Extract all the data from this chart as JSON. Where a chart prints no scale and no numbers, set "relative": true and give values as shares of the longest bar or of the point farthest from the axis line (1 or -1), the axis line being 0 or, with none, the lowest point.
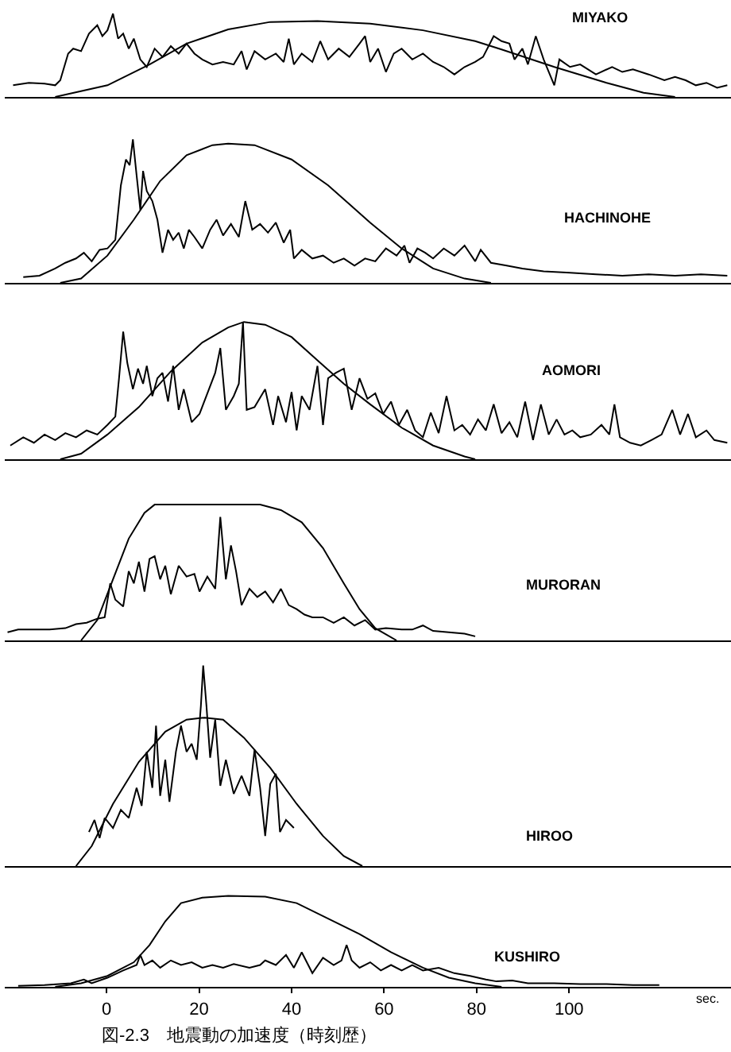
{
  "chart_data": [
    {
      "type": "line",
      "title": "MIYAKO",
      "relative": true,
      "xlim": [
        -22,
        135
      ],
      "tick_labels": false,
      "series": [
        {
          "color": "#000000",
          "x": [
            -11.1,
            0.2,
            9.3,
            17.3,
            26.3,
            35.4,
            45.6,
            57.0,
            68.4,
            79.7,
            85.4,
            96.8,
            108.1,
            116.1,
            122.9
          ],
          "values": [
            0,
            0.14,
            0.39,
            0.64,
            0.81,
            0.9,
            0.91,
            0.88,
            0.8,
            0.67,
            0.57,
            0.36,
            0.17,
            0.05,
            0
          ]
        },
        {
          "color": "#000000",
          "x": [
            -20.2,
            -16.8,
            -13.4,
            -11.1,
            -10.0,
            -8.3,
            -7.2,
            -5.5,
            -3.8,
            -2.0,
            -0.9,
            0.2,
            1.4,
            2.5,
            3.6,
            4.8,
            5.9,
            7.3,
            8.7,
            10.4,
            12.1,
            13.9,
            15.6,
            17.3,
            19.0,
            20.7,
            22.9,
            25.2,
            27.5,
            29.2,
            30.3,
            32.0,
            34.3,
            36.6,
            38.3,
            39.4,
            40.5,
            42.2,
            44.5,
            46.2,
            47.9,
            50.2,
            52.5,
            54.7,
            55.9,
            57.0,
            58.7,
            60.4,
            62.1,
            63.8,
            66.1,
            68.4,
            70.6,
            72.9,
            75.2,
            77.4,
            79.7,
            81.4,
            83.7,
            85.4,
            87.1,
            88.2,
            89.9,
            91.1,
            92.8,
            94.5,
            96.8,
            97.9,
            100.2,
            102.4,
            105.8,
            109.3,
            111.5,
            113.8,
            117.2,
            120.6,
            122.9,
            125.2,
            127.4,
            129.7,
            132.0,
            134.2
          ],
          "values": [
            0.14,
            0.17,
            0.16,
            0.14,
            0.2,
            0.52,
            0.58,
            0.55,
            0.76,
            0.86,
            0.73,
            0.8,
            1.0,
            0.7,
            0.76,
            0.58,
            0.7,
            0.45,
            0.36,
            0.58,
            0.48,
            0.61,
            0.52,
            0.64,
            0.52,
            0.45,
            0.39,
            0.42,
            0.39,
            0.55,
            0.33,
            0.55,
            0.45,
            0.52,
            0.42,
            0.7,
            0.39,
            0.52,
            0.42,
            0.67,
            0.45,
            0.58,
            0.48,
            0.64,
            0.73,
            0.42,
            0.58,
            0.3,
            0.52,
            0.58,
            0.45,
            0.52,
            0.42,
            0.36,
            0.27,
            0.36,
            0.42,
            0.48,
            0.73,
            0.67,
            0.64,
            0.45,
            0.58,
            0.39,
            0.73,
            0.45,
            0.14,
            0.45,
            0.36,
            0.39,
            0.27,
            0.36,
            0.3,
            0.33,
            0.27,
            0.2,
            0.24,
            0.2,
            0.14,
            0.17,
            0.11,
            0.14
          ]
        }
      ]
    },
    {
      "type": "line",
      "title": "HACHINOHE",
      "relative": true,
      "xlim": [
        -22,
        135
      ],
      "tick_labels": false,
      "series": [
        {
          "color": "#000000",
          "x": [
            -10.0,
            -5.5,
            0.2,
            5.9,
            11.6,
            17.3,
            22.9,
            26.3,
            32.0,
            40.0,
            47.9,
            57.0,
            63.8,
            70.6,
            77.4,
            83.1
          ],
          "values": [
            0,
            0.03,
            0.19,
            0.44,
            0.71,
            0.89,
            0.96,
            0.97,
            0.96,
            0.86,
            0.68,
            0.42,
            0.24,
            0.1,
            0.03,
            0
          ]
        },
        {
          "color": "#000000",
          "x": [
            -18.0,
            -14.5,
            -11.1,
            -8.9,
            -6.6,
            -4.9,
            -3.2,
            -1.5,
            0.2,
            1.9,
            3.1,
            4.2,
            5.0,
            5.7,
            6.5,
            7.3,
            7.9,
            8.7,
            9.9,
            11.0,
            12.1,
            13.3,
            14.4,
            15.6,
            16.7,
            17.8,
            19.0,
            20.7,
            22.4,
            23.8,
            25.2,
            26.9,
            28.6,
            30.0,
            31.5,
            33.2,
            34.9,
            36.6,
            38.3,
            39.7,
            40.5,
            42.2,
            44.5,
            46.8,
            49.1,
            51.3,
            53.6,
            55.9,
            58.1,
            60.4,
            62.7,
            64.4,
            65.5,
            67.2,
            68.9,
            70.6,
            72.9,
            75.2,
            77.4,
            79.7,
            80.9,
            83.1,
            86.5,
            89.9,
            94.5,
            100.2,
            105.8,
            111.5,
            117.2,
            122.9,
            128.5,
            134.2
          ],
          "values": [
            0.04,
            0.05,
            0.1,
            0.14,
            0.17,
            0.21,
            0.15,
            0.23,
            0.24,
            0.3,
            0.68,
            0.86,
            0.82,
            1.0,
            0.75,
            0.51,
            0.78,
            0.64,
            0.57,
            0.44,
            0.21,
            0.37,
            0.3,
            0.35,
            0.24,
            0.37,
            0.32,
            0.24,
            0.37,
            0.44,
            0.33,
            0.41,
            0.32,
            0.57,
            0.37,
            0.41,
            0.35,
            0.42,
            0.28,
            0.37,
            0.17,
            0.23,
            0.17,
            0.19,
            0.14,
            0.17,
            0.12,
            0.17,
            0.15,
            0.24,
            0.19,
            0.26,
            0.14,
            0.24,
            0.21,
            0.17,
            0.24,
            0.19,
            0.26,
            0.15,
            0.23,
            0.14,
            0.12,
            0.1,
            0.08,
            0.07,
            0.06,
            0.05,
            0.06,
            0.05,
            0.06,
            0.05
          ]
        }
      ]
    },
    {
      "type": "line",
      "title": "AOMORI",
      "relative": true,
      "xlim": [
        -22,
        135
      ],
      "tick_labels": false,
      "series": [
        {
          "color": "#000000",
          "x": [
            -10.0,
            -5.5,
            0.2,
            7.0,
            13.9,
            20.7,
            26.3,
            29.7,
            34.3,
            40.0,
            45.6,
            51.3,
            57.0,
            63.8,
            70.6,
            77.4,
            79.7
          ],
          "values": [
            0,
            0.04,
            0.18,
            0.38,
            0.64,
            0.85,
            0.96,
            1.0,
            0.98,
            0.89,
            0.72,
            0.55,
            0.4,
            0.23,
            0.1,
            0.02,
            0
          ]
        },
        {
          "color": "#000000",
          "x": [
            -20.8,
            -18.0,
            -15.7,
            -13.4,
            -11.1,
            -8.9,
            -6.6,
            -4.3,
            -2.0,
            0.2,
            1.9,
            2.7,
            3.6,
            4.5,
            5.7,
            6.8,
            7.9,
            8.7,
            9.9,
            11.0,
            12.1,
            13.3,
            14.4,
            15.6,
            16.7,
            18.4,
            20.1,
            21.8,
            23.5,
            24.6,
            25.8,
            27.5,
            28.6,
            29.5,
            30.3,
            32.0,
            34.3,
            36.0,
            37.1,
            38.8,
            40.0,
            41.1,
            42.2,
            43.9,
            45.6,
            46.8,
            47.9,
            49.6,
            51.3,
            53.0,
            54.7,
            56.4,
            58.1,
            59.8,
            61.5,
            63.2,
            65.0,
            66.7,
            68.4,
            70.1,
            71.8,
            73.5,
            75.2,
            76.9,
            78.6,
            80.3,
            82.0,
            83.7,
            85.4,
            87.1,
            88.8,
            90.5,
            92.2,
            93.9,
            95.6,
            97.3,
            99.0,
            100.7,
            102.4,
            104.7,
            107.0,
            108.7,
            109.8,
            111.0,
            113.2,
            115.5,
            117.8,
            120.0,
            122.3,
            124.0,
            125.7,
            127.4,
            129.7,
            131.4,
            134.2
          ],
          "values": [
            0.1,
            0.16,
            0.12,
            0.18,
            0.14,
            0.19,
            0.16,
            0.21,
            0.18,
            0.25,
            0.31,
            0.59,
            0.93,
            0.7,
            0.51,
            0.66,
            0.55,
            0.68,
            0.46,
            0.59,
            0.63,
            0.42,
            0.68,
            0.36,
            0.51,
            0.27,
            0.33,
            0.48,
            0.63,
            0.81,
            0.36,
            0.46,
            0.55,
            1.0,
            0.36,
            0.38,
            0.51,
            0.25,
            0.46,
            0.27,
            0.49,
            0.21,
            0.46,
            0.36,
            0.68,
            0.25,
            0.59,
            0.63,
            0.66,
            0.36,
            0.59,
            0.44,
            0.48,
            0.33,
            0.42,
            0.25,
            0.36,
            0.21,
            0.16,
            0.34,
            0.19,
            0.46,
            0.21,
            0.25,
            0.18,
            0.29,
            0.21,
            0.4,
            0.19,
            0.27,
            0.16,
            0.42,
            0.14,
            0.4,
            0.18,
            0.29,
            0.18,
            0.21,
            0.16,
            0.18,
            0.25,
            0.18,
            0.4,
            0.16,
            0.12,
            0.1,
            0.14,
            0.18,
            0.36,
            0.18,
            0.33,
            0.16,
            0.21,
            0.14,
            0.12
          ]
        }
      ]
    },
    {
      "type": "line",
      "title": "MURORAN",
      "relative": true,
      "xlim": [
        -22,
        135
      ],
      "tick_labels": false,
      "series": [
        {
          "color": "#000000",
          "x": [
            -5.5,
            -2.0,
            1.4,
            4.8,
            8.2,
            10.4,
            22.9,
            33.2,
            37.7,
            42.2,
            46.8,
            51.3,
            54.7,
            58.1,
            62.7
          ],
          "values": [
            0,
            0.15,
            0.45,
            0.75,
            0.94,
            1.0,
            1.0,
            1.0,
            0.96,
            0.87,
            0.68,
            0.42,
            0.23,
            0.09,
            0
          ]
        },
        {
          "color": "#000000",
          "x": [
            -21.4,
            -19.1,
            -15.7,
            -12.3,
            -8.9,
            -6.6,
            -4.3,
            -2.0,
            -0.4,
            0.8,
            1.9,
            3.6,
            4.8,
            5.9,
            7.0,
            8.2,
            9.3,
            10.4,
            11.6,
            12.7,
            13.9,
            15.6,
            17.3,
            19.0,
            20.1,
            21.8,
            23.5,
            24.6,
            25.8,
            26.9,
            28.0,
            29.2,
            30.9,
            32.6,
            34.3,
            36.0,
            37.7,
            39.4,
            41.1,
            42.8,
            44.5,
            46.8,
            49.1,
            51.3,
            53.6,
            55.9,
            58.1,
            60.4,
            63.8,
            66.1,
            68.4,
            70.6,
            74.0,
            77.4,
            79.7
          ],
          "values": [
            0.06,
            0.08,
            0.08,
            0.08,
            0.09,
            0.12,
            0.13,
            0.16,
            0.17,
            0.42,
            0.3,
            0.25,
            0.51,
            0.42,
            0.58,
            0.36,
            0.6,
            0.62,
            0.45,
            0.55,
            0.34,
            0.55,
            0.47,
            0.49,
            0.36,
            0.47,
            0.38,
            0.91,
            0.45,
            0.7,
            0.51,
            0.26,
            0.38,
            0.32,
            0.36,
            0.28,
            0.38,
            0.26,
            0.23,
            0.19,
            0.17,
            0.17,
            0.13,
            0.17,
            0.11,
            0.15,
            0.08,
            0.09,
            0.08,
            0.08,
            0.11,
            0.07,
            0.06,
            0.05,
            0.03
          ]
        }
      ]
    },
    {
      "type": "line",
      "title": "HIROO",
      "relative": true,
      "xlim": [
        -22,
        135
      ],
      "tick_labels": false,
      "series": [
        {
          "color": "#000000",
          "x": [
            -6.6,
            -3.2,
            1.4,
            7.0,
            12.7,
            17.3,
            21.2,
            25.2,
            29.7,
            35.4,
            41.1,
            46.8,
            51.3,
            55.3
          ],
          "values": [
            0,
            0.1,
            0.31,
            0.52,
            0.67,
            0.73,
            0.74,
            0.73,
            0.64,
            0.49,
            0.31,
            0.15,
            0.05,
            0
          ]
        },
        {
          "color": "#000000",
          "x": [
            -3.8,
            -2.6,
            -1.5,
            -0.4,
            1.4,
            3.1,
            4.8,
            6.5,
            7.6,
            8.7,
            9.9,
            10.7,
            11.6,
            12.7,
            13.6,
            15.0,
            16.1,
            17.3,
            18.4,
            19.5,
            20.4,
            20.9,
            21.6,
            22.4,
            23.5,
            24.6,
            25.8,
            27.5,
            29.2,
            30.9,
            32.0,
            33.2,
            34.3,
            35.4,
            36.6,
            37.5,
            38.8,
            40.5
          ],
          "values": [
            0.17,
            0.23,
            0.14,
            0.24,
            0.19,
            0.28,
            0.24,
            0.39,
            0.3,
            0.57,
            0.39,
            0.7,
            0.35,
            0.53,
            0.32,
            0.57,
            0.7,
            0.57,
            0.61,
            0.53,
            0.8,
            1.0,
            0.8,
            0.54,
            0.73,
            0.4,
            0.53,
            0.36,
            0.45,
            0.35,
            0.58,
            0.39,
            0.15,
            0.41,
            0.46,
            0.17,
            0.23,
            0.19
          ]
        }
      ]
    },
    {
      "type": "line",
      "title": "KUSHIRO",
      "relative": true,
      "xlim": [
        -22,
        135
      ],
      "xticks": [
        0,
        20,
        40,
        60,
        80,
        100
      ],
      "xlabel": "sec.",
      "tick_labels": "x",
      "annotations": [
        "図-2.3　地震動の加速度（時刻歴）"
      ],
      "series": [
        {
          "color": "#000000",
          "x": [
            -11.1,
            -5.5,
            0.2,
            5.9,
            9.3,
            12.7,
            16.1,
            20.7,
            26.3,
            34.3,
            41.1,
            47.9,
            54.7,
            61.5,
            68.4,
            74.0,
            79.7,
            85.4
          ],
          "values": [
            0,
            0.04,
            0.12,
            0.27,
            0.46,
            0.72,
            0.92,
            0.98,
            1.0,
            0.99,
            0.92,
            0.75,
            0.58,
            0.38,
            0.21,
            0.1,
            0.04,
            0
          ]
        },
        {
          "color": "#000000",
          "x": [
            -19.1,
            -13.4,
            -7.7,
            -4.9,
            -3.2,
            0.2,
            3.6,
            6.5,
            7.3,
            8.2,
            9.9,
            11.6,
            13.9,
            16.1,
            18.4,
            20.7,
            22.9,
            25.2,
            27.5,
            30.9,
            33.2,
            34.3,
            36.6,
            38.8,
            40.5,
            42.2,
            44.5,
            46.8,
            49.1,
            50.8,
            51.9,
            53.0,
            54.7,
            57.0,
            59.3,
            61.5,
            63.8,
            66.1,
            68.4,
            71.8,
            75.2,
            78.6,
            82.0,
            84.3,
            87.7,
            91.1,
            96.8,
            102.4,
            108.1,
            113.8,
            119.5
          ],
          "values": [
            0.01,
            0.02,
            0.04,
            0.08,
            0.04,
            0.1,
            0.18,
            0.24,
            0.35,
            0.24,
            0.29,
            0.21,
            0.29,
            0.24,
            0.27,
            0.21,
            0.24,
            0.21,
            0.25,
            0.21,
            0.24,
            0.29,
            0.24,
            0.35,
            0.21,
            0.38,
            0.15,
            0.32,
            0.24,
            0.29,
            0.46,
            0.29,
            0.21,
            0.27,
            0.18,
            0.24,
            0.18,
            0.24,
            0.18,
            0.21,
            0.15,
            0.12,
            0.08,
            0.06,
            0.07,
            0.04,
            0.04,
            0.03,
            0.03,
            0.02,
            0.02
          ]
        }
      ]
    }
  ]
}
